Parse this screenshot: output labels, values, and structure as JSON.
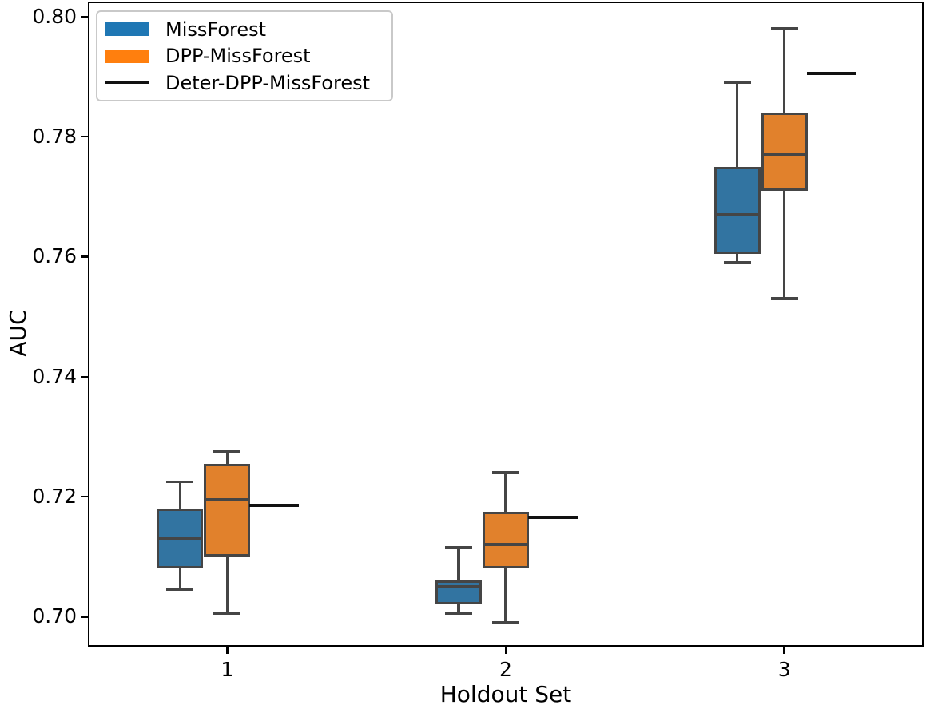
{
  "chart_data": {
    "type": "boxplot",
    "title": "",
    "xlabel": "Holdout Set",
    "ylabel": "AUC",
    "categories": [
      "1",
      "2",
      "3"
    ],
    "xlim": [
      0.5,
      3.5
    ],
    "ylim": [
      0.695,
      0.8025
    ],
    "yticks": [
      0.8,
      0.78,
      0.76,
      0.74,
      0.72,
      0.7
    ],
    "ytick_labels": [
      "0.80",
      "0.78",
      "0.76",
      "0.74",
      "0.72",
      "0.70"
    ],
    "grid": false,
    "legend_position": "upper left",
    "edge_color": "#454545",
    "series": [
      {
        "name": "MissForest",
        "type": "box",
        "fill_color": "#3274a1",
        "legend_color": "#1f77b4",
        "boxes": [
          {
            "whislo": 0.7045,
            "q1": 0.708,
            "med": 0.713,
            "q3": 0.718,
            "whishi": 0.7225
          },
          {
            "whislo": 0.7005,
            "q1": 0.702,
            "med": 0.705,
            "q3": 0.706,
            "whishi": 0.7115
          },
          {
            "whislo": 0.759,
            "q1": 0.7605,
            "med": 0.767,
            "q3": 0.775,
            "whishi": 0.789
          }
        ]
      },
      {
        "name": "DPP-MissForest",
        "type": "box",
        "fill_color": "#e1812c",
        "legend_color": "#ff7f0e",
        "boxes": [
          {
            "whislo": 0.7005,
            "q1": 0.71,
            "med": 0.7195,
            "q3": 0.7255,
            "whishi": 0.7275
          },
          {
            "whislo": 0.699,
            "q1": 0.708,
            "med": 0.712,
            "q3": 0.7175,
            "whishi": 0.724
          },
          {
            "whislo": 0.753,
            "q1": 0.771,
            "med": 0.777,
            "q3": 0.784,
            "whishi": 0.798
          }
        ]
      },
      {
        "name": "Deter-DPP-MissForest",
        "type": "line",
        "color": "#111111",
        "values": [
          0.7185,
          0.7165,
          0.7905
        ]
      }
    ]
  }
}
